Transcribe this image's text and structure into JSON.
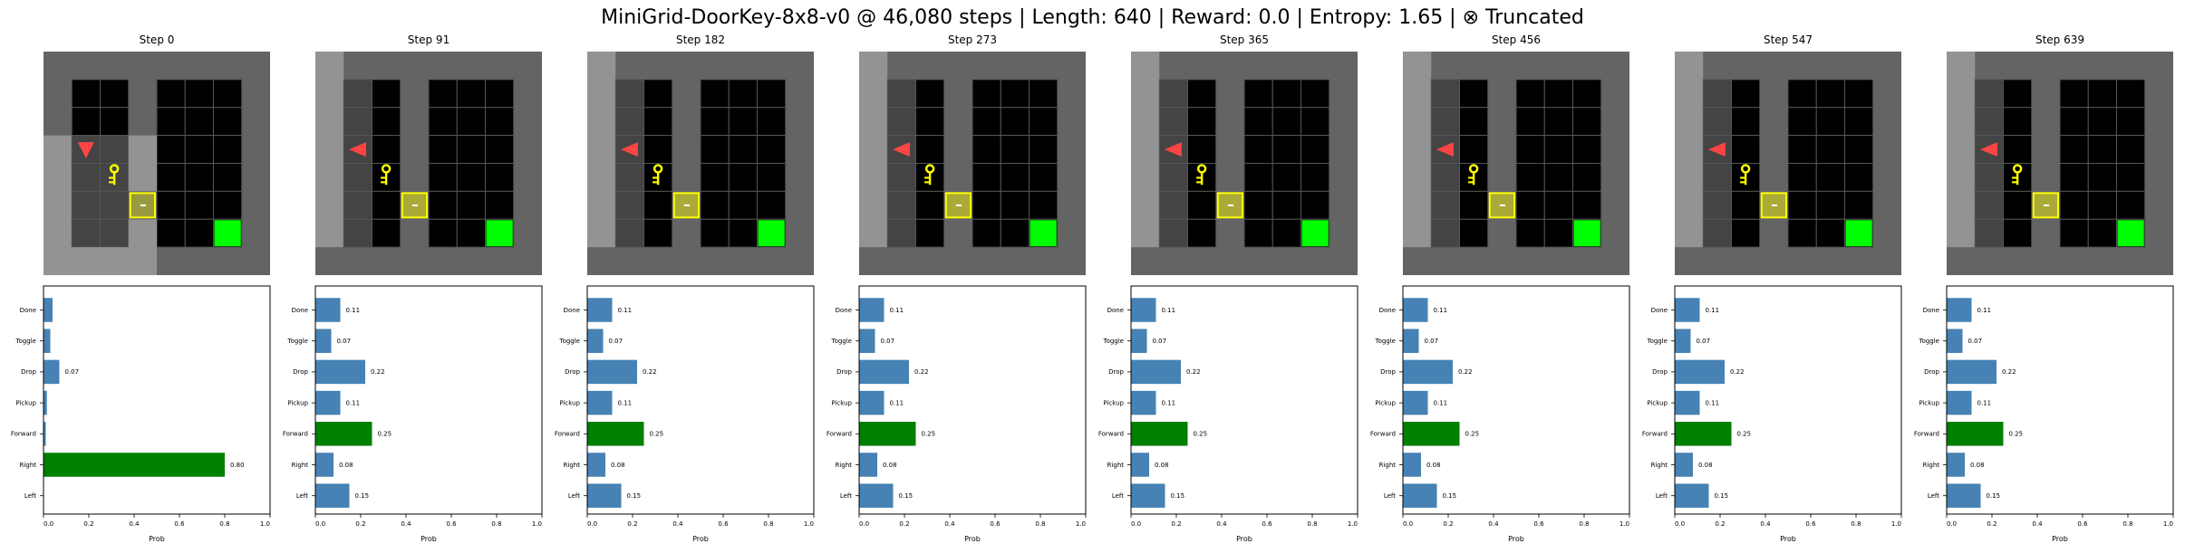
{
  "figure": {
    "title": "MiniGrid-DoorKey-8x8-v0 @ 46,080 steps | Length: 640 | Reward: 0.0 | Entropy: 1.65 | ⊗ Truncated",
    "colors": {
      "bar": "#4682b4",
      "selected_bar": "#008000",
      "wall": "#646464",
      "floor": "#000000",
      "visible_wall": "#939393",
      "visible_floor": "#444444",
      "grid_line": "#555555",
      "goal": "#00ff00",
      "key": "#ffff00",
      "door": "#ffff00",
      "agent": "#ff4444"
    }
  },
  "chart_data": [
    {
      "type": "bar",
      "orientation": "horizontal",
      "subplot_title": "Step 0",
      "env_view": {
        "agent_icon": "agent-triangle-icon",
        "agent_direction": "down",
        "agent_cell": [
          1,
          3
        ],
        "key_cell": [
          2,
          4
        ],
        "door_cell": [
          3,
          5
        ],
        "goal_cell": [
          6,
          6
        ],
        "door_state": "closed",
        "view_region": "bottom-left"
      },
      "categories": [
        "Done",
        "Toggle",
        "Drop",
        "Pickup",
        "Forward",
        "Right",
        "Left"
      ],
      "values": [
        0.04,
        0.03,
        0.07,
        0.015,
        0.01,
        0.8,
        0.0
      ],
      "value_labels": [
        "",
        "",
        "0.07",
        "",
        "",
        "0.80",
        ""
      ],
      "selected_action": "Right",
      "xlabel": "Prob",
      "xlim": [
        0,
        1.0
      ],
      "xticks": [
        "0.0",
        "0.2",
        "0.4",
        "0.6",
        "0.8",
        "1.0"
      ],
      "grid": false
    },
    {
      "type": "bar",
      "orientation": "horizontal",
      "subplot_title": "Step 91",
      "env_view": {
        "agent_icon": "agent-triangle-icon",
        "agent_direction": "left",
        "agent_cell": [
          1,
          3
        ],
        "key_cell": [
          2,
          4
        ],
        "door_cell": [
          3,
          5
        ],
        "goal_cell": [
          6,
          6
        ],
        "door_state": "closed",
        "view_region": "left"
      },
      "categories": [
        "Done",
        "Toggle",
        "Drop",
        "Pickup",
        "Forward",
        "Right",
        "Left"
      ],
      "values": [
        0.11,
        0.07,
        0.22,
        0.11,
        0.25,
        0.08,
        0.15
      ],
      "value_labels": [
        "0.11",
        "0.07",
        "0.22",
        "0.11",
        "0.25",
        "0.08",
        "0.15"
      ],
      "selected_action": "Forward",
      "xlabel": "Prob",
      "xlim": [
        0,
        1.0
      ],
      "xticks": [
        "0.0",
        "0.2",
        "0.4",
        "0.6",
        "0.8",
        "1.0"
      ],
      "grid": false
    },
    {
      "type": "bar",
      "orientation": "horizontal",
      "subplot_title": "Step 182",
      "env_view": {
        "agent_icon": "agent-triangle-icon",
        "agent_direction": "left",
        "agent_cell": [
          1,
          3
        ],
        "key_cell": [
          2,
          4
        ],
        "door_cell": [
          3,
          5
        ],
        "goal_cell": [
          6,
          6
        ],
        "door_state": "closed",
        "view_region": "left"
      },
      "categories": [
        "Done",
        "Toggle",
        "Drop",
        "Pickup",
        "Forward",
        "Right",
        "Left"
      ],
      "values": [
        0.11,
        0.07,
        0.22,
        0.11,
        0.25,
        0.08,
        0.15
      ],
      "value_labels": [
        "0.11",
        "0.07",
        "0.22",
        "0.11",
        "0.25",
        "0.08",
        "0.15"
      ],
      "selected_action": "Forward",
      "xlabel": "Prob",
      "xlim": [
        0,
        1.0
      ],
      "xticks": [
        "0.0",
        "0.2",
        "0.4",
        "0.6",
        "0.8",
        "1.0"
      ],
      "grid": false
    },
    {
      "type": "bar",
      "orientation": "horizontal",
      "subplot_title": "Step 273",
      "env_view": {
        "agent_icon": "agent-triangle-icon",
        "agent_direction": "left",
        "agent_cell": [
          1,
          3
        ],
        "key_cell": [
          2,
          4
        ],
        "door_cell": [
          3,
          5
        ],
        "goal_cell": [
          6,
          6
        ],
        "door_state": "closed",
        "view_region": "left"
      },
      "categories": [
        "Done",
        "Toggle",
        "Drop",
        "Pickup",
        "Forward",
        "Right",
        "Left"
      ],
      "values": [
        0.11,
        0.07,
        0.22,
        0.11,
        0.25,
        0.08,
        0.15
      ],
      "value_labels": [
        "0.11",
        "0.07",
        "0.22",
        "0.11",
        "0.25",
        "0.08",
        "0.15"
      ],
      "selected_action": "Forward",
      "xlabel": "Prob",
      "xlim": [
        0,
        1.0
      ],
      "xticks": [
        "0.0",
        "0.2",
        "0.4",
        "0.6",
        "0.8",
        "1.0"
      ],
      "grid": false
    },
    {
      "type": "bar",
      "orientation": "horizontal",
      "subplot_title": "Step 365",
      "env_view": {
        "agent_icon": "agent-triangle-icon",
        "agent_direction": "left",
        "agent_cell": [
          1,
          3
        ],
        "key_cell": [
          2,
          4
        ],
        "door_cell": [
          3,
          5
        ],
        "goal_cell": [
          6,
          6
        ],
        "door_state": "closed",
        "view_region": "left"
      },
      "categories": [
        "Done",
        "Toggle",
        "Drop",
        "Pickup",
        "Forward",
        "Right",
        "Left"
      ],
      "values": [
        0.11,
        0.07,
        0.22,
        0.11,
        0.25,
        0.08,
        0.15
      ],
      "value_labels": [
        "0.11",
        "0.07",
        "0.22",
        "0.11",
        "0.25",
        "0.08",
        "0.15"
      ],
      "selected_action": "Forward",
      "xlabel": "Prob",
      "xlim": [
        0,
        1.0
      ],
      "xticks": [
        "0.0",
        "0.2",
        "0.4",
        "0.6",
        "0.8",
        "1.0"
      ],
      "grid": false
    },
    {
      "type": "bar",
      "orientation": "horizontal",
      "subplot_title": "Step 456",
      "env_view": {
        "agent_icon": "agent-triangle-icon",
        "agent_direction": "left",
        "agent_cell": [
          1,
          3
        ],
        "key_cell": [
          2,
          4
        ],
        "door_cell": [
          3,
          5
        ],
        "goal_cell": [
          6,
          6
        ],
        "door_state": "closed",
        "view_region": "left"
      },
      "categories": [
        "Done",
        "Toggle",
        "Drop",
        "Pickup",
        "Forward",
        "Right",
        "Left"
      ],
      "values": [
        0.11,
        0.07,
        0.22,
        0.11,
        0.25,
        0.08,
        0.15
      ],
      "value_labels": [
        "0.11",
        "0.07",
        "0.22",
        "0.11",
        "0.25",
        "0.08",
        "0.15"
      ],
      "selected_action": "Forward",
      "xlabel": "Prob",
      "xlim": [
        0,
        1.0
      ],
      "xticks": [
        "0.0",
        "0.2",
        "0.4",
        "0.6",
        "0.8",
        "1.0"
      ],
      "grid": false
    },
    {
      "type": "bar",
      "orientation": "horizontal",
      "subplot_title": "Step 547",
      "env_view": {
        "agent_icon": "agent-triangle-icon",
        "agent_direction": "left",
        "agent_cell": [
          1,
          3
        ],
        "key_cell": [
          2,
          4
        ],
        "door_cell": [
          3,
          5
        ],
        "goal_cell": [
          6,
          6
        ],
        "door_state": "closed",
        "view_region": "left"
      },
      "categories": [
        "Done",
        "Toggle",
        "Drop",
        "Pickup",
        "Forward",
        "Right",
        "Left"
      ],
      "values": [
        0.11,
        0.07,
        0.22,
        0.11,
        0.25,
        0.08,
        0.15
      ],
      "value_labels": [
        "0.11",
        "0.07",
        "0.22",
        "0.11",
        "0.25",
        "0.08",
        "0.15"
      ],
      "selected_action": "Forward",
      "xlabel": "Prob",
      "xlim": [
        0,
        1.0
      ],
      "xticks": [
        "0.0",
        "0.2",
        "0.4",
        "0.6",
        "0.8",
        "1.0"
      ],
      "grid": false
    },
    {
      "type": "bar",
      "orientation": "horizontal",
      "subplot_title": "Step 639",
      "env_view": {
        "agent_icon": "agent-triangle-icon",
        "agent_direction": "left",
        "agent_cell": [
          1,
          3
        ],
        "key_cell": [
          2,
          4
        ],
        "door_cell": [
          3,
          5
        ],
        "goal_cell": [
          6,
          6
        ],
        "door_state": "closed",
        "view_region": "left"
      },
      "categories": [
        "Done",
        "Toggle",
        "Drop",
        "Pickup",
        "Forward",
        "Right",
        "Left"
      ],
      "values": [
        0.11,
        0.07,
        0.22,
        0.11,
        0.25,
        0.08,
        0.15
      ],
      "value_labels": [
        "0.11",
        "0.07",
        "0.22",
        "0.11",
        "0.25",
        "0.08",
        "0.15"
      ],
      "selected_action": "Forward",
      "xlabel": "Prob",
      "xlim": [
        0,
        1.0
      ],
      "xticks": [
        "0.0",
        "0.2",
        "0.4",
        "0.6",
        "0.8",
        "1.0"
      ],
      "grid": false
    }
  ]
}
